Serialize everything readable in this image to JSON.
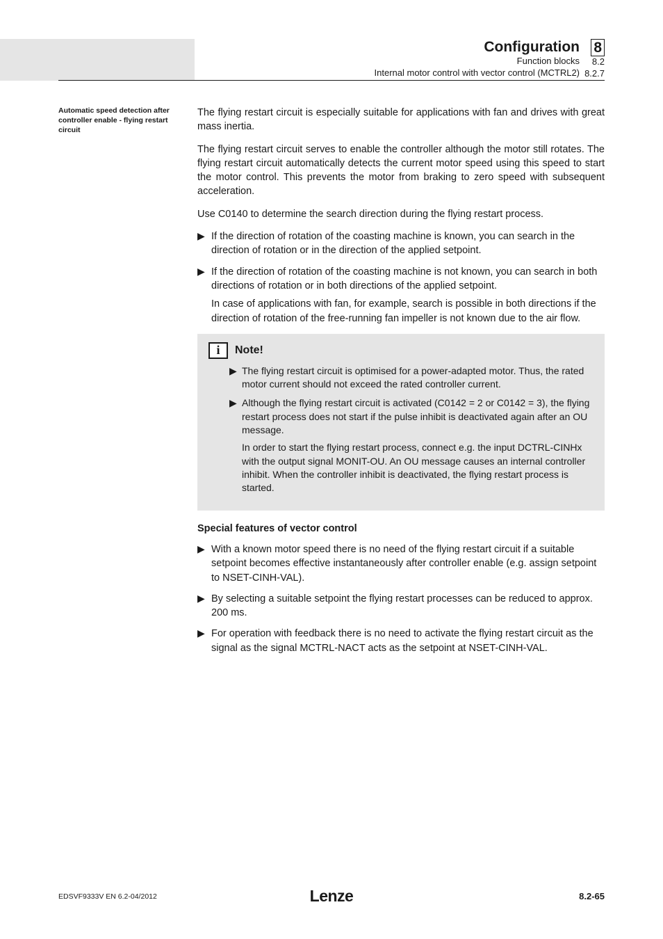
{
  "header": {
    "title": "Configuration",
    "sub1": "Function blocks",
    "sub2": "Internal motor control with vector control (MCTRL2)",
    "chapter": "8",
    "section": "8.2",
    "subsection": "8.2.7"
  },
  "sidebar": {
    "label": "Automatic speed detection after controller enable - flying restart circuit"
  },
  "paras": {
    "p1": "The flying restart circuit is especially suitable for applications with fan and drives with great mass inertia.",
    "p2": "The flying restart circuit serves to enable the controller although the motor still rotates. The flying restart circuit automatically detects the current motor speed using this speed to start the motor control. This prevents the motor from braking to zero speed with subsequent acceleration.",
    "p3": "Use C0140 to determine the search direction during the flying restart process."
  },
  "bullets1": [
    {
      "text": "If the direction of rotation of the coasting machine is known, you can search in the direction of rotation or in the direction of the applied setpoint."
    },
    {
      "text": "If the direction of rotation of the coasting machine is not known, you can search in both directions of rotation or in both directions of the applied setpoint.",
      "sub": "In case of applications with fan, for example, search is possible in both directions if the direction of rotation of the free-running fan impeller is not known due to the air flow."
    }
  ],
  "note": {
    "title": "Note!",
    "items": [
      {
        "text": "The flying restart circuit is optimised for a power-adapted motor. Thus, the rated motor current should not exceed the rated controller current."
      },
      {
        "text": "Although the flying restart circuit is activated (C0142 = 2 or C0142 = 3), the flying restart process does not start if the pulse inhibit is deactivated again after an OU message.",
        "inner": "In order to start the flying restart process, connect e.g. the input DCTRL-CINHx with the output signal MONIT-OU. An OU message causes an internal controller inhibit. When the controller inhibit is deactivated, the flying restart process is started."
      }
    ]
  },
  "subhead": "Special features of vector control",
  "bullets2": [
    {
      "text": "With a known motor speed there is no need of the flying restart circuit if a suitable setpoint becomes effective instantaneously after controller enable (e.g. assign setpoint to NSET-CINH-VAL)."
    },
    {
      "text": "By selecting a suitable setpoint the flying restart processes can be reduced to approx. 200 ms."
    },
    {
      "text": "For operation with feedback there is no need to activate the flying restart circuit as the signal as the signal MCTRL-NACT acts as the setpoint at NSET-CINH-VAL."
    }
  ],
  "footer": {
    "left": "EDSVF9333V EN 6.2-04/2012",
    "logo": "Lenze",
    "page": "8.2-65"
  },
  "marker": "▶"
}
